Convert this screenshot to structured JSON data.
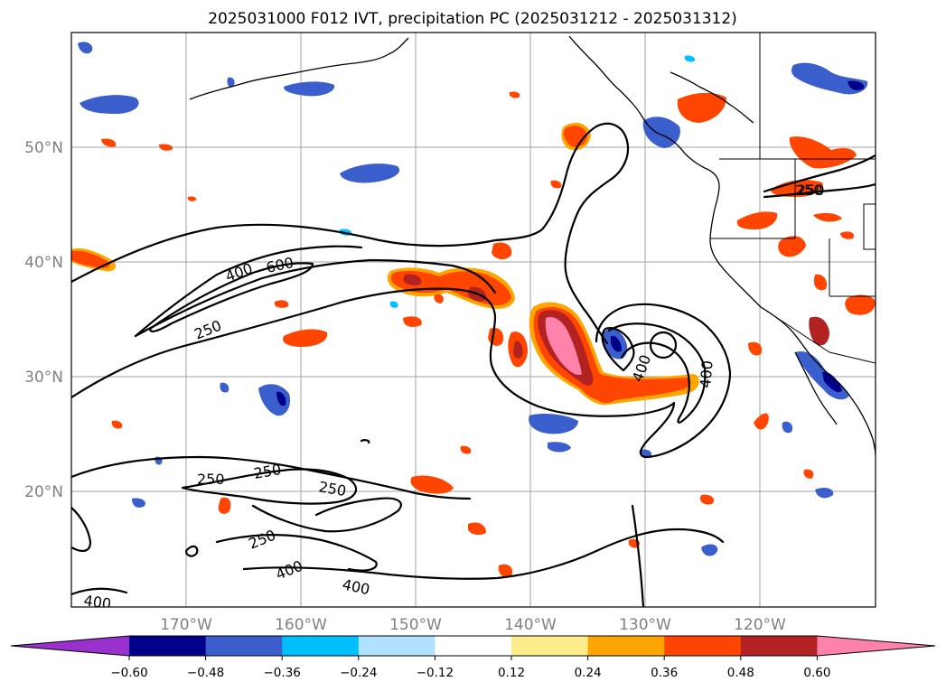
{
  "title": "2025031000 F012 IVT, precipitation PC (2025031212 - 2025031312)",
  "lat_labels": [
    "50°N",
    "40°N",
    "30°N",
    "20°N"
  ],
  "lon_labels": [
    "170°W",
    "160°W",
    "150°W",
    "140°W",
    "130°W",
    "120°W"
  ],
  "contour_levels": [
    "250",
    "400",
    "600"
  ],
  "contour_labels": [
    "400",
    "600",
    "250",
    "400",
    "400",
    "250",
    "250",
    "250",
    "250",
    "250",
    "250",
    "400",
    "400",
    "400"
  ],
  "colorbar": {
    "tick_labels": [
      "−0.60",
      "−0.48",
      "−0.36",
      "−0.24",
      "−0.12",
      "0.12",
      "0.24",
      "0.36",
      "0.48",
      "0.60"
    ],
    "colors": [
      "#9932cc",
      "#00008b",
      "#3a5fcd",
      "#00bfff",
      "#b0e2ff",
      "#ffffff",
      "#ffec8b",
      "#ffa500",
      "#ff4500",
      "#b22222",
      "#ff82ab"
    ]
  }
}
